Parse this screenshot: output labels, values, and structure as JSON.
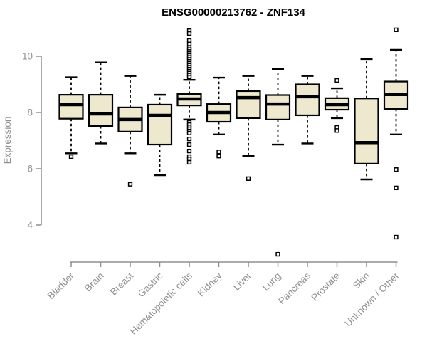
{
  "chart_data": {
    "type": "boxplot",
    "title": "ENSG00000213762 - ZNF134",
    "ylabel": "Expression",
    "xlabel": "",
    "ylim": [
      2.8,
      11.1
    ],
    "yticks": [
      4,
      6,
      8,
      10
    ],
    "grid": false,
    "legend": "none",
    "categories": [
      "Bladder",
      "Brain",
      "Breast",
      "Gastric",
      "Hematopoietic cells",
      "Kidney",
      "Liver",
      "Lung",
      "Pancreas",
      "Prostate",
      "Skin",
      "Unknown / Other"
    ],
    "series": [
      {
        "category": "Bladder",
        "whisker_low": 6.55,
        "q1": 7.78,
        "median": 8.28,
        "q3": 8.63,
        "whisker_high": 9.25,
        "outliers": [
          6.43
        ]
      },
      {
        "category": "Brain",
        "whisker_low": 6.9,
        "q1": 7.52,
        "median": 7.95,
        "q3": 8.63,
        "whisker_high": 9.78,
        "outliers": []
      },
      {
        "category": "Breast",
        "whisker_low": 6.55,
        "q1": 7.32,
        "median": 7.75,
        "q3": 8.18,
        "whisker_high": 9.3,
        "outliers": [
          5.45
        ]
      },
      {
        "category": "Gastric",
        "whisker_low": 5.77,
        "q1": 6.86,
        "median": 7.9,
        "q3": 8.28,
        "whisker_high": 8.63,
        "outliers": []
      },
      {
        "category": "Hematopoietic cells",
        "whisker_low": 7.75,
        "q1": 8.25,
        "median": 8.48,
        "q3": 8.66,
        "whisker_high": 9.16,
        "outliers": [
          10.91,
          10.81,
          10.56,
          10.44,
          10.31,
          10.24,
          10.17,
          10.1,
          10.03,
          9.96,
          9.89,
          9.82,
          9.75,
          9.68,
          9.61,
          9.54,
          9.47,
          9.4,
          9.33,
          9.26,
          7.65,
          7.57,
          7.49,
          7.42,
          7.34,
          7.27,
          7.06,
          6.86,
          6.63,
          6.43,
          6.35,
          6.23
        ]
      },
      {
        "category": "Kidney",
        "whisker_low": 7.22,
        "q1": 7.67,
        "median": 8.0,
        "q3": 8.3,
        "whisker_high": 9.24,
        "outliers": [
          6.6,
          6.45
        ]
      },
      {
        "category": "Liver",
        "whisker_low": 6.45,
        "q1": 7.8,
        "median": 8.53,
        "q3": 8.76,
        "whisker_high": 9.3,
        "outliers": [
          5.65
        ]
      },
      {
        "category": "Lung",
        "whisker_low": 6.86,
        "q1": 7.75,
        "median": 8.3,
        "q3": 8.62,
        "whisker_high": 9.55,
        "outliers": [
          2.96
        ]
      },
      {
        "category": "Pancreas",
        "whisker_low": 6.9,
        "q1": 7.9,
        "median": 8.56,
        "q3": 9.0,
        "whisker_high": 9.3,
        "outliers": []
      },
      {
        "category": "Prostate",
        "whisker_low": 7.8,
        "q1": 8.1,
        "median": 8.28,
        "q3": 8.51,
        "whisker_high": 8.86,
        "outliers": [
          9.14,
          7.47,
          7.36
        ]
      },
      {
        "category": "Skin",
        "whisker_low": 5.62,
        "q1": 6.18,
        "median": 6.93,
        "q3": 8.5,
        "whisker_high": 9.9,
        "outliers": []
      },
      {
        "category": "Unknown / Other",
        "whisker_low": 7.22,
        "q1": 8.13,
        "median": 8.64,
        "q3": 9.1,
        "whisker_high": 10.23,
        "outliers": [
          10.94,
          5.97,
          5.32,
          3.57
        ]
      }
    ],
    "colors": {
      "box_fill": "#EDE8CE",
      "box_stroke": "#000000",
      "median": "#000000",
      "whisker": "#000000",
      "outlier_stroke": "#000000",
      "axis": "#8F8F8F",
      "tick_label": "#8F8F8F",
      "title": "#000000"
    }
  }
}
